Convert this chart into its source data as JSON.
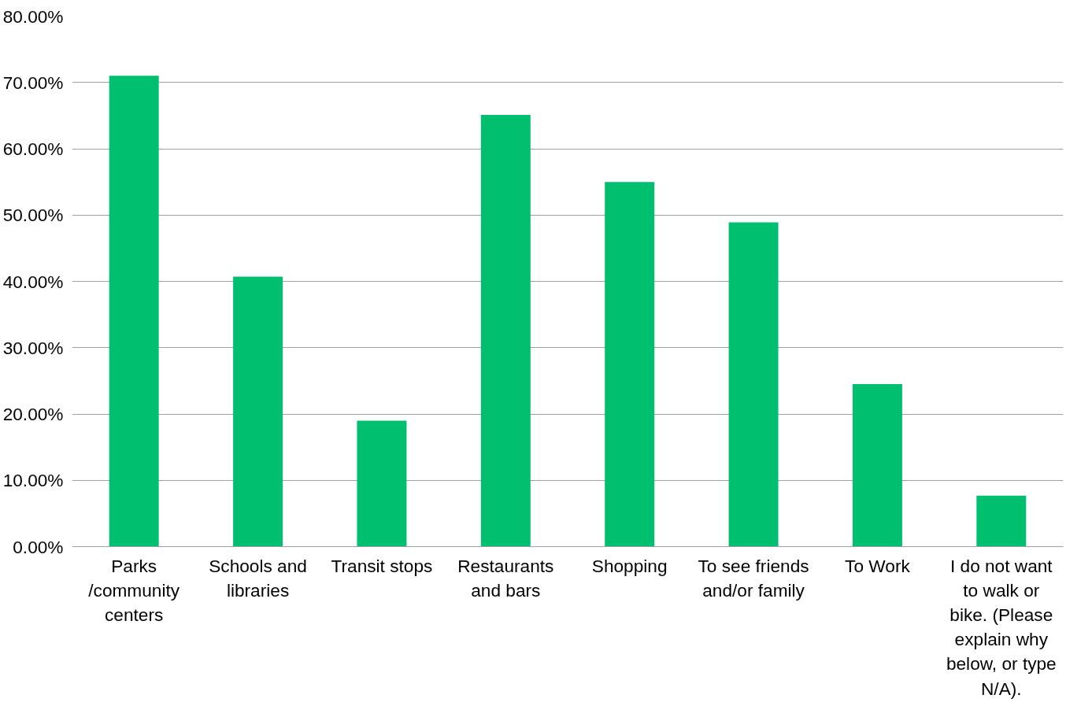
{
  "chart_data": {
    "type": "bar",
    "categories": [
      "Parks /community centers",
      "Schools and libraries",
      "Transit stops",
      "Restaurants and bars",
      "Shopping",
      "To see friends and/or family",
      "To Work",
      "I do not want to walk or bike. (Please explain why below, or type N/A)."
    ],
    "values": [
      71.0,
      40.7,
      19.0,
      65.1,
      55.0,
      48.9,
      24.5,
      7.7
    ],
    "color": "#00bf6f",
    "ylim": [
      0,
      80
    ],
    "yticks": [
      {
        "value": 0,
        "label": "0.00%"
      },
      {
        "value": 10,
        "label": "10.00%"
      },
      {
        "value": 20,
        "label": "20.00%"
      },
      {
        "value": 30,
        "label": "30.00%"
      },
      {
        "value": 40,
        "label": "40.00%"
      },
      {
        "value": 50,
        "label": "50.00%"
      },
      {
        "value": 60,
        "label": "60.00%"
      },
      {
        "value": 70,
        "label": "70.00%"
      },
      {
        "value": 80,
        "label": "80.00%"
      }
    ],
    "grid": "y"
  }
}
